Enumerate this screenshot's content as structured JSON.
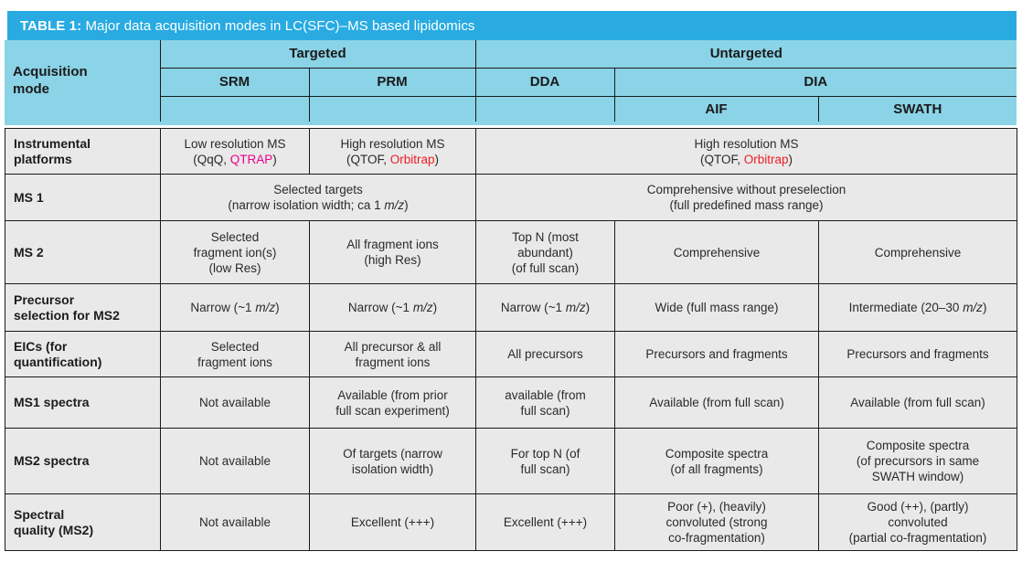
{
  "title": "{{b:TABLE 1:}} Major data acquisition modes in LC(SFC)–MS based lipidomics",
  "colors": {
    "title_bar": "#29abe2",
    "header_bg": "#8bd3e7",
    "body_bg": "#e9e9e9",
    "grid_line": "#1a1a1a",
    "accent_magenta": "#ec008c",
    "accent_red": "#ed1c24",
    "title_text": "#ffffff"
  },
  "header": {
    "acquisition_mode": "Acquisition\nmode",
    "targeted": "Targeted",
    "untargeted": "Untargeted",
    "srm": "SRM",
    "prm": "PRM",
    "dda": "DDA",
    "dia": "DIA",
    "aif": "AIF",
    "swath": "SWATH"
  },
  "rows": {
    "platforms": {
      "label": "Instrumental\nplatforms",
      "srm": "Low resolution MS\n(QqQ, {{magenta:QTRAP}})",
      "prm": "High resolution MS\n(QTOF, {{red:Orbitrap}})",
      "untargeted": "High resolution MS\n(QTOF, {{red:Orbitrap}})"
    },
    "ms1": {
      "label": "MS 1",
      "targeted": "Selected targets\n(narrow isolation width; ca 1 {{i:m/z}})",
      "untargeted": "Comprehensive without preselection\n(full predefined mass range)"
    },
    "ms2": {
      "label": "MS 2",
      "srm": "Selected\nfragment ion(s)\n(low Res)",
      "prm": "All fragment ions\n(high Res)",
      "dda": "Top N (most\nabundant)\n(of full scan)",
      "aif": "Comprehensive",
      "swath": "Comprehensive"
    },
    "precursor": {
      "label": "Precursor\nselection for MS2",
      "srm": "Narrow (~1 {{i:m/z}})",
      "prm": "Narrow (~1 {{i:m/z}})",
      "dda": "Narrow (~1 {{i:m/z}})",
      "aif": "Wide (full mass range)",
      "swath": "Intermediate (20–30 {{i:m/z}})"
    },
    "eics": {
      "label": "EICs (for\nquantification)",
      "srm": "Selected\nfragment ions",
      "prm": "All precursor & all\nfragment ions",
      "dda": "All precursors",
      "aif": "Precursors and fragments",
      "swath": "Precursors and fragments"
    },
    "ms1_spectra": {
      "label": "MS1 spectra",
      "srm": "Not available",
      "prm": "Available (from prior\nfull scan experiment)",
      "dda": "available (from\nfull scan)",
      "aif": "Available (from full scan)",
      "swath": "Available (from full scan)"
    },
    "ms2_spectra": {
      "label": "MS2 spectra",
      "srm": "Not available",
      "prm": "Of targets (narrow\nisolation width)",
      "dda": "For top N (of\nfull scan)",
      "aif": "Composite spectra\n(of all fragments)",
      "swath": "Composite spectra\n(of precursors in same\nSWATH window)"
    },
    "quality": {
      "label": "Spectral\nquality (MS2)",
      "srm": "Not available",
      "prm": "Excellent (+++)",
      "dda": "Excellent (+++)",
      "aif": "Poor (+), (heavily)\nconvoluted (strong\nco-fragmentation)",
      "swath": "Good (++), (partly)\nconvoluted\n(partial co-fragmentation)"
    }
  }
}
